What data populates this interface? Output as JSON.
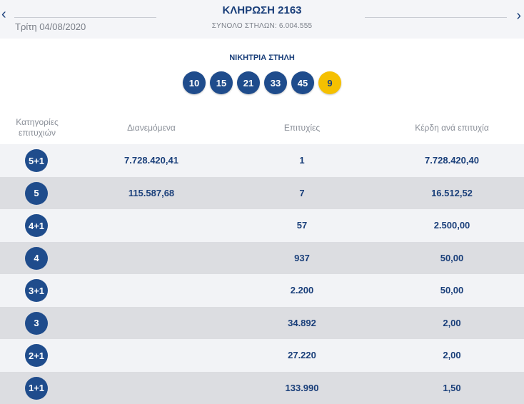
{
  "header": {
    "prev_icon": "‹",
    "next_icon": "›",
    "date": "Τρίτη 04/08/2020",
    "title": "ΚΛΗΡΩΣΗ 2163",
    "subtitle": "ΣΥΝΟΛΟ ΣΤΗΛΩΝ: 6.004.555"
  },
  "winning": {
    "title": "ΝΙΚΗΤΡΙΑ ΣΤΗΛΗ",
    "numbers": [
      "10",
      "15",
      "21",
      "33",
      "45"
    ],
    "bonus": "9",
    "bonus_color": "#f5c000",
    "ball_color": "#1f4c8c"
  },
  "table": {
    "headers": {
      "category_line1": "Κατηγορίες",
      "category_line2": "επιτυχιών",
      "distributed": "Διανεμόμενα",
      "winners": "Επιτυχίες",
      "prize": "Κέρδη ανά επιτυχία"
    },
    "rows": [
      {
        "category": "5+1",
        "distributed": "7.728.420,41",
        "winners": "1",
        "prize": "7.728.420,40"
      },
      {
        "category": "5",
        "distributed": "115.587,68",
        "winners": "7",
        "prize": "16.512,52"
      },
      {
        "category": "4+1",
        "distributed": "",
        "winners": "57",
        "prize": "2.500,00"
      },
      {
        "category": "4",
        "distributed": "",
        "winners": "937",
        "prize": "50,00"
      },
      {
        "category": "3+1",
        "distributed": "",
        "winners": "2.200",
        "prize": "50,00"
      },
      {
        "category": "3",
        "distributed": "",
        "winners": "34.892",
        "prize": "2,00"
      },
      {
        "category": "2+1",
        "distributed": "",
        "winners": "27.220",
        "prize": "2,00"
      },
      {
        "category": "1+1",
        "distributed": "",
        "winners": "133.990",
        "prize": "1,50"
      }
    ]
  }
}
